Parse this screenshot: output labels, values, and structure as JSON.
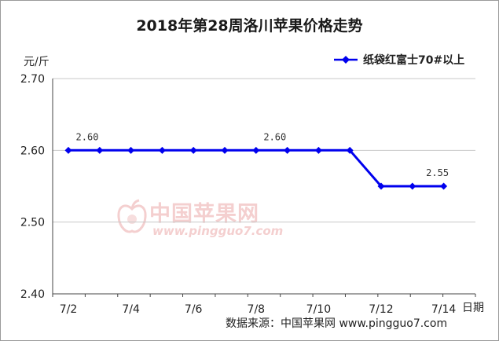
{
  "chart_data": {
    "type": "line",
    "title": "2018年第28周洛川苹果价格走势",
    "ylabel": "元/斤",
    "xlabel": "日期",
    "ylim": [
      2.4,
      2.7
    ],
    "yticks": [
      "2.70",
      "2.60",
      "2.50",
      "2.40"
    ],
    "grid": true,
    "legend_position": "top-right",
    "categories": [
      "7/2",
      "7/3",
      "7/4",
      "7/5",
      "7/6",
      "7/7",
      "7/8",
      "7/9",
      "7/10",
      "7/11",
      "7/12",
      "7/13",
      "7/14"
    ],
    "xtick_labels": [
      "7/2",
      "7/4",
      "7/6",
      "7/8",
      "7/10",
      "7/12",
      "7/14"
    ],
    "series": [
      {
        "name": "纸袋红富士70#以上",
        "color": "#0000ee",
        "values": [
          2.6,
          2.6,
          2.6,
          2.6,
          2.6,
          2.6,
          2.6,
          2.6,
          2.6,
          2.6,
          2.55,
          2.55,
          2.55
        ]
      }
    ],
    "annotations": [
      {
        "category": "7/2",
        "text": "2.60"
      },
      {
        "category": "7/8",
        "text": "2.60"
      },
      {
        "category": "7/14",
        "text": "2.55"
      }
    ]
  },
  "source": "数据来源：中国苹果网 www.pingguo7.com",
  "watermark": {
    "name": "中国苹果网",
    "url": "www.pingguo7.com",
    "color": "#f4cfcf"
  }
}
